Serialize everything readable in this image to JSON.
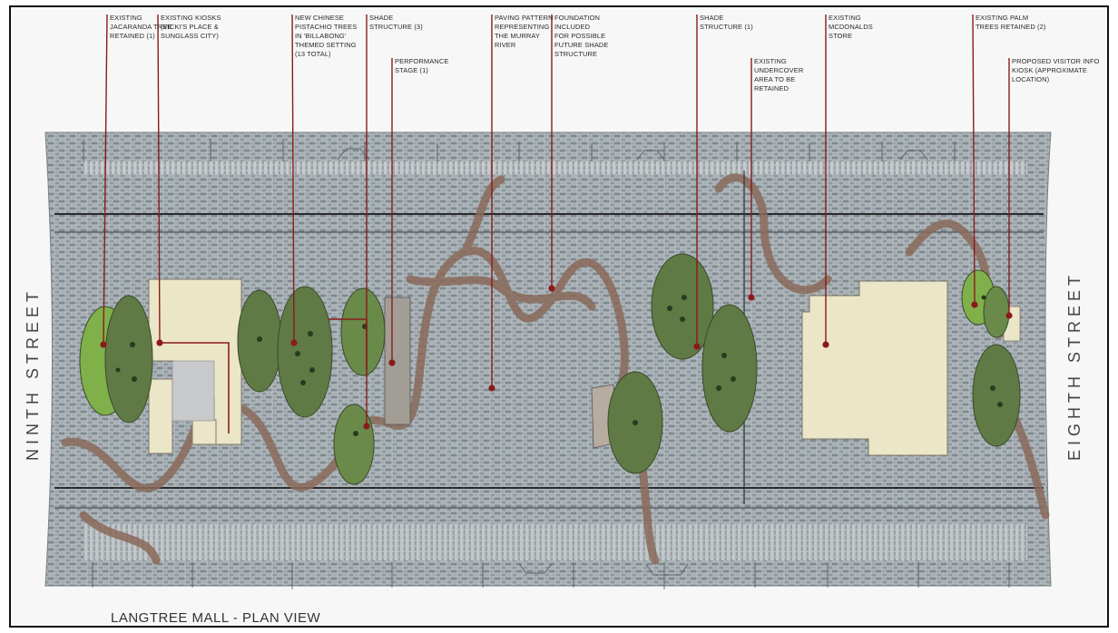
{
  "title": "LANGTREE MALL - PLAN VIEW",
  "streets": {
    "left": "NINTH STREET",
    "right": "EIGHTH STREET"
  },
  "annotations": [
    {
      "id": "jacaranda",
      "lines": [
        "EXISTING",
        "JACARANDA TREE",
        "RETAINED (1)"
      ]
    },
    {
      "id": "kiosks",
      "lines": [
        "EXISTING KIOSKS",
        "(VICKI'S PLACE &",
        "SUNGLASS CITY)"
      ]
    },
    {
      "id": "pistachio",
      "lines": [
        "NEW CHINESE",
        "PISTACHIO TREES",
        "IN 'BILLABONG'",
        "THEMED SETTING",
        "(13 TOTAL)"
      ]
    },
    {
      "id": "shade-3",
      "lines": [
        "SHADE",
        "STRUCTURE (3)"
      ]
    },
    {
      "id": "performance",
      "lines": [
        "PERFORMANCE",
        "STAGE (1)"
      ]
    },
    {
      "id": "paving",
      "lines": [
        "PAVING PATTERN",
        "REPRESENTING",
        "THE MURRAY",
        "RIVER"
      ]
    },
    {
      "id": "foundation",
      "lines": [
        "FOUNDATION",
        "INCLUDED",
        "FOR POSSIBLE",
        "FUTURE SHADE",
        "STRUCTURE"
      ]
    },
    {
      "id": "shade-1",
      "lines": [
        "SHADE",
        "STRUCTURE (1)"
      ]
    },
    {
      "id": "undercover",
      "lines": [
        "EXISTING",
        "UNDERCOVER",
        "AREA TO BE",
        "RETAINED"
      ]
    },
    {
      "id": "mcdonalds",
      "lines": [
        "EXISTING",
        "MCDONALDS",
        "STORE"
      ]
    },
    {
      "id": "palms",
      "lines": [
        "EXISTING PALM",
        "TREES RETAINED (2)"
      ]
    },
    {
      "id": "visitor",
      "lines": [
        "PROPOSED VISITOR INFO",
        "KIOSK (APPROXIMATE",
        "LOCATION)"
      ]
    }
  ],
  "colors": {
    "leader": "#8b1a1a",
    "paving": "#9aa3a8",
    "path": "#8a6a5a",
    "tree": "#5f7a45",
    "tree_light": "#7fb04a",
    "building": "#ece6c8"
  }
}
